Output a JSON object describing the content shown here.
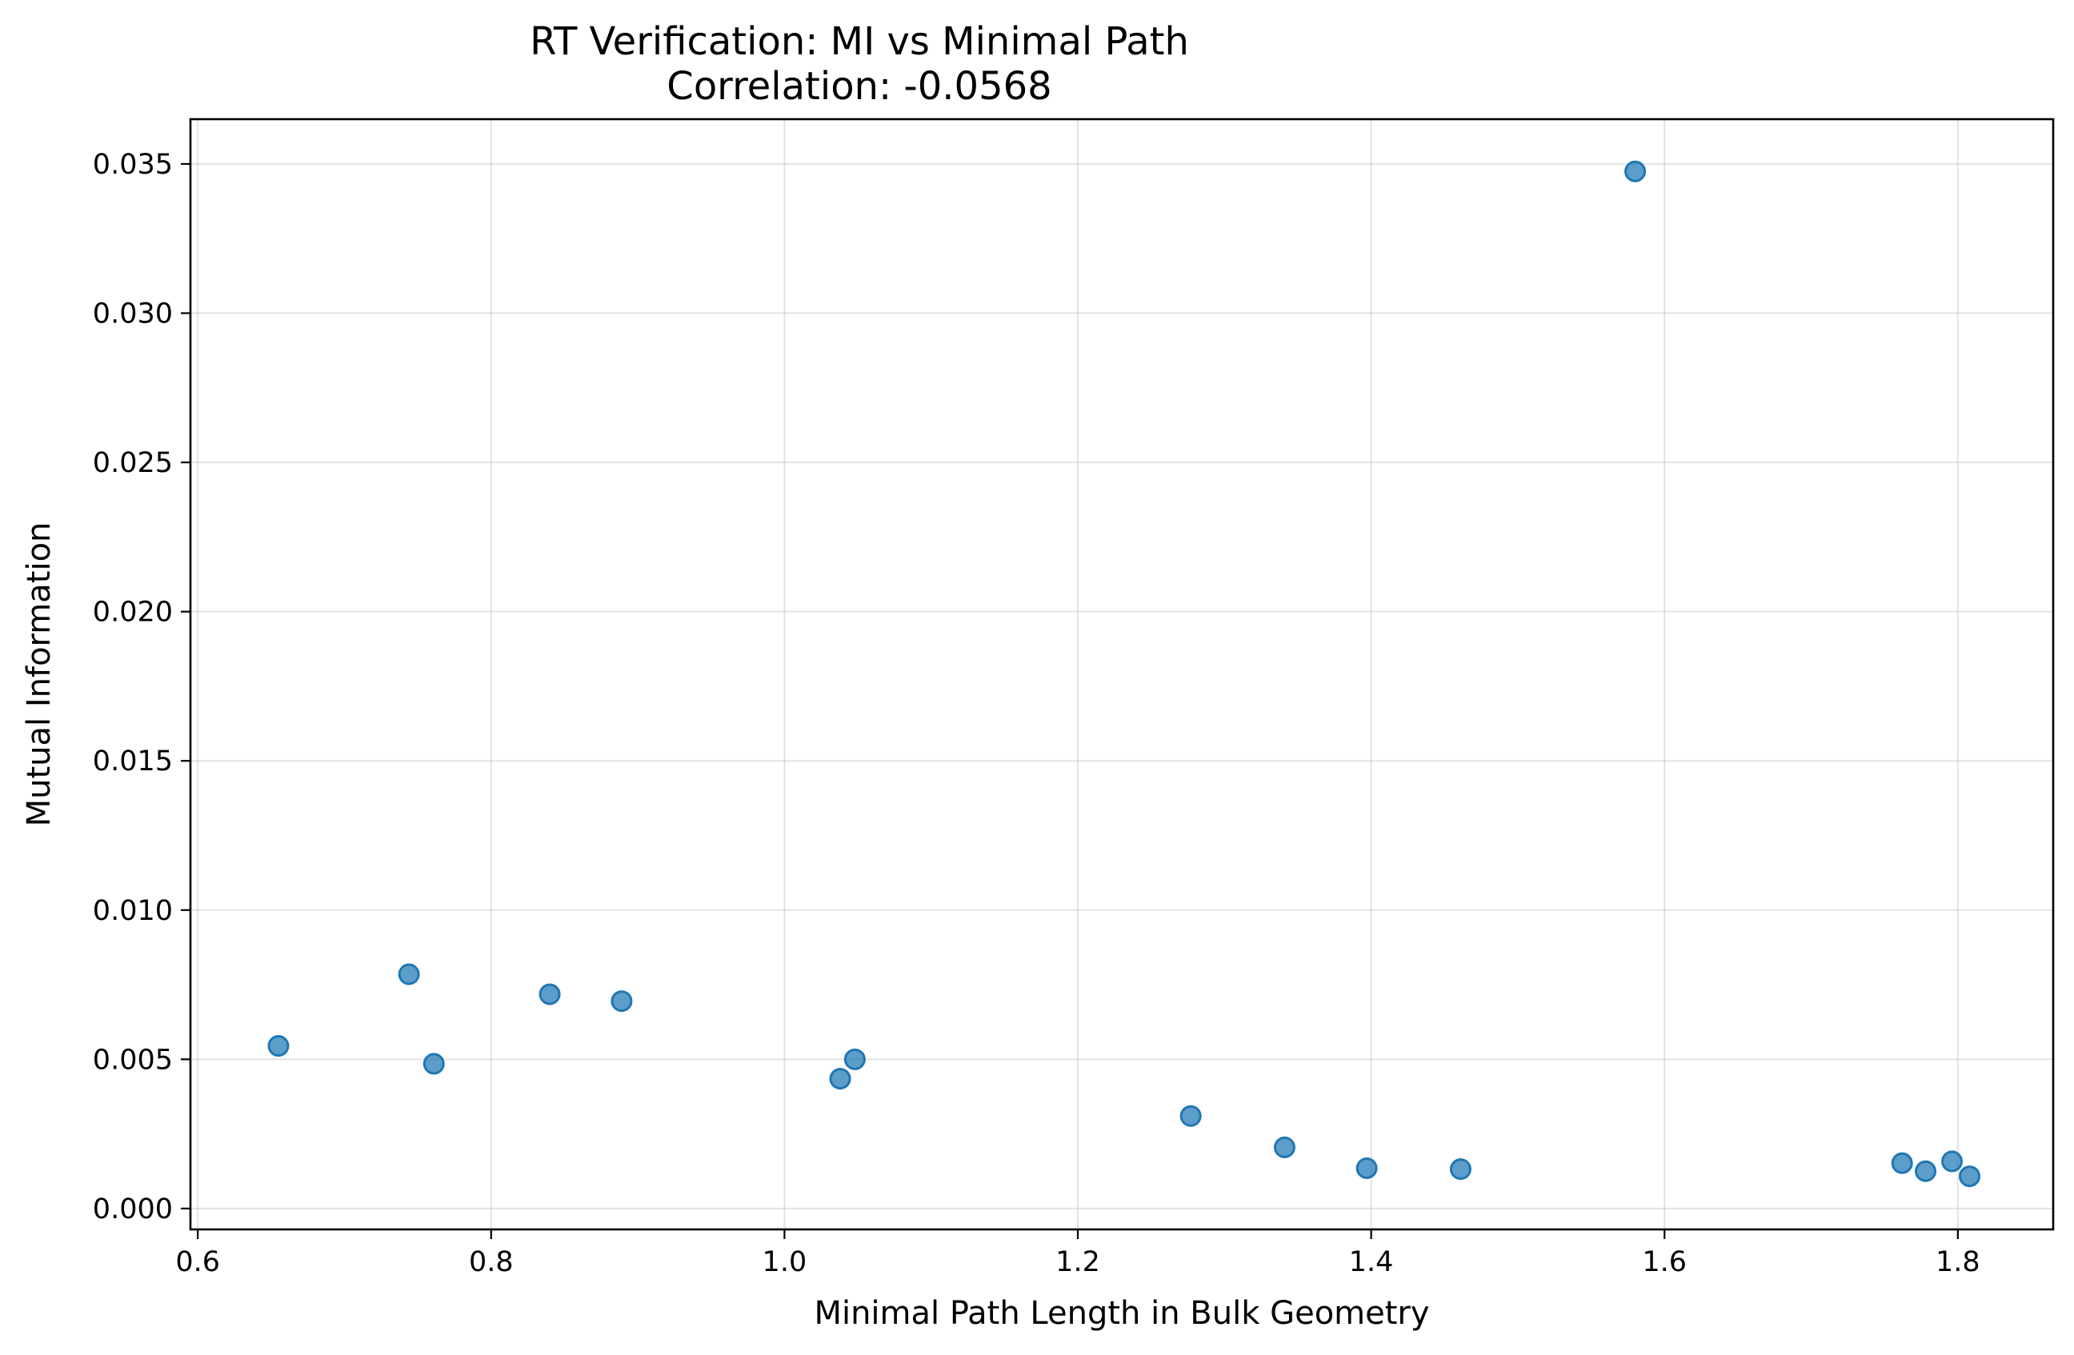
{
  "chart_data": {
    "type": "scatter",
    "title": "RT Verification: MI vs Minimal Path",
    "subtitle": "Correlation: -0.0568",
    "xlabel": "Minimal Path Length in Bulk Geometry",
    "ylabel": "Mutual Information",
    "xlim": [
      0.595,
      1.865
    ],
    "ylim": [
      -0.0007,
      0.0365
    ],
    "x_ticks": [
      0.6,
      0.8,
      1.0,
      1.2,
      1.4,
      1.6,
      1.8
    ],
    "x_tick_labels": [
      "0.6",
      "0.8",
      "1.0",
      "1.2",
      "1.4",
      "1.6",
      "1.8"
    ],
    "y_ticks": [
      0.0,
      0.005,
      0.01,
      0.015,
      0.02,
      0.025,
      0.03,
      0.035
    ],
    "y_tick_labels": [
      "0.000",
      "0.005",
      "0.010",
      "0.015",
      "0.020",
      "0.025",
      "0.030",
      "0.035"
    ],
    "grid": true,
    "color": "#1f77b4",
    "points": [
      {
        "x": 0.655,
        "y": 0.00545
      },
      {
        "x": 0.744,
        "y": 0.00785
      },
      {
        "x": 0.761,
        "y": 0.00485
      },
      {
        "x": 0.84,
        "y": 0.00718
      },
      {
        "x": 0.889,
        "y": 0.00695
      },
      {
        "x": 1.038,
        "y": 0.00435
      },
      {
        "x": 1.048,
        "y": 0.005
      },
      {
        "x": 1.277,
        "y": 0.0031
      },
      {
        "x": 1.341,
        "y": 0.00205
      },
      {
        "x": 1.397,
        "y": 0.00135
      },
      {
        "x": 1.461,
        "y": 0.00132
      },
      {
        "x": 1.58,
        "y": 0.03475
      },
      {
        "x": 1.762,
        "y": 0.00152
      },
      {
        "x": 1.778,
        "y": 0.00125
      },
      {
        "x": 1.796,
        "y": 0.00158
      },
      {
        "x": 1.808,
        "y": 0.00108
      }
    ]
  }
}
